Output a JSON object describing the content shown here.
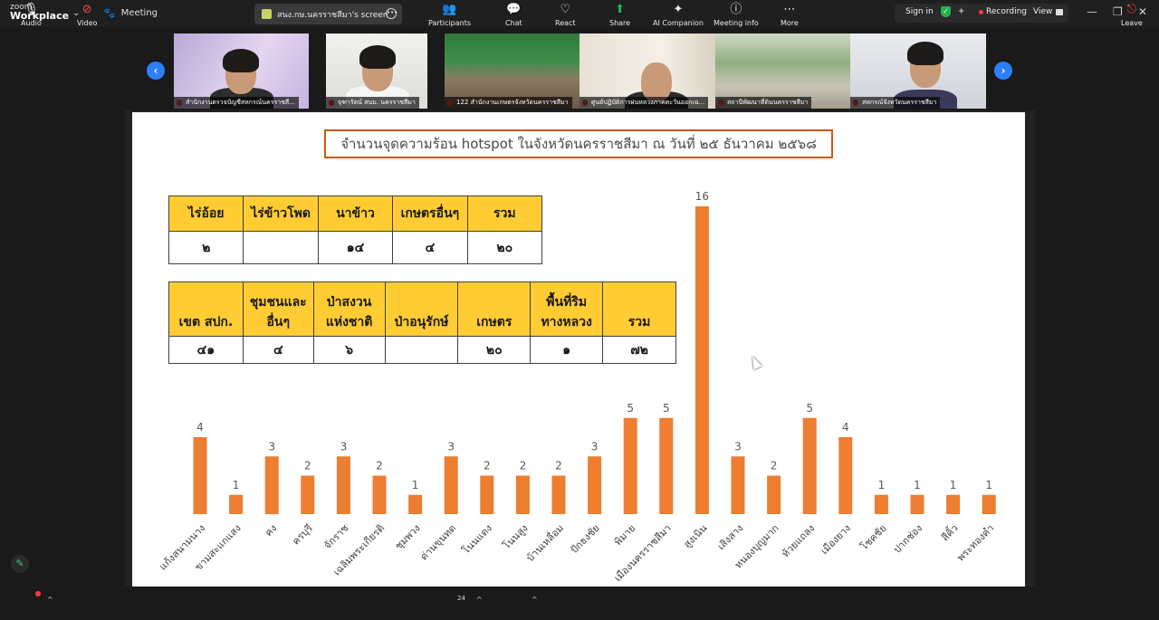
{
  "app": {
    "brand_top": "zoom",
    "brand_main": "Workplace",
    "meeting_label": "Meeting",
    "share_tab_label": "สนง.กษ.นครราชสีมา's screen",
    "sign_in": "Sign in",
    "recording": "Recording",
    "view": "View"
  },
  "participants_strip": [
    {
      "name": "สำนักงานตรวจบัญชีสหกรณ์นครราชสี..."
    },
    {
      "name": "จุฑารัตน์ สนม. นครราชสีมา"
    },
    {
      "name": "122 สำนักงานเกษตรจังหวัดนครราชสีมา"
    },
    {
      "name": "ศูนย์ปฏิบัติการฝนหลวงภาคตะวันออกเฉ..."
    },
    {
      "name": "สถานีพัฒนาที่ดินนครราชสีมา"
    },
    {
      "name": "สหกรณ์จังหวัดนครราชสีมา"
    }
  ],
  "slide": {
    "title": "จำนวนจุดความร้อน hotspot ในจังหวัดนครราชสีมา ณ วันที่ ๒๕ ธันวาคม ๒๕๖๘",
    "table1": {
      "headers": [
        "ไร่อ้อย",
        "ไร่ข้าวโพด",
        "นาข้าว",
        "เกษตรอื่นๆ",
        "รวม"
      ],
      "values": [
        "๒",
        "",
        "๑๔",
        "๔",
        "๒๐"
      ]
    },
    "table2": {
      "headers_line1": [
        "",
        "ชุมชนและ",
        "ป่าสงวน",
        "",
        "",
        "พื้นที่ริม",
        ""
      ],
      "headers_line2": [
        "เขต สปก.",
        "อื่นๆ",
        "แห่งชาติ",
        "ป่าอนุรักษ์",
        "เกษตร",
        "ทางหลวง",
        "รวม"
      ],
      "values": [
        "๔๑",
        "๔",
        "๖",
        "",
        "๒๐",
        "๑",
        "๗๒"
      ]
    }
  },
  "chart_data": {
    "type": "bar",
    "categories": [
      "แก้งสนามนาง",
      "ขามสะแกแสง",
      "คง",
      "ครบุรี",
      "จักราช",
      "เฉลิมพระเกียรติ",
      "ชุมพวง",
      "ด่านขุนทด",
      "โนนแดง",
      "โนนสูง",
      "บ้านเหลื่อม",
      "ปักธงชัย",
      "พิมาย",
      "เมืองนครราชสีมา",
      "สูงเนิน",
      "เสิงสาง",
      "หนองบุญมาก",
      "ห้วยแถลง",
      "เมืองยาง",
      "โชคชัย",
      "ปากช่อง",
      "สีคิ้ว",
      "พระทองคำ"
    ],
    "values": [
      4,
      1,
      3,
      2,
      3,
      2,
      1,
      3,
      2,
      2,
      2,
      3,
      5,
      5,
      16,
      3,
      2,
      5,
      4,
      1,
      1,
      1,
      1
    ],
    "ylim": [
      0,
      16
    ],
    "color": "#ed7d31",
    "grid": false
  },
  "toolbar": {
    "audio": "Audio",
    "video": "Video",
    "participants": "Participants",
    "participants_count": "24",
    "chat": "Chat",
    "react": "React",
    "share": "Share",
    "ai_companion": "AI Companion",
    "meeting_info": "Meeting info",
    "more": "More",
    "leave": "Leave"
  },
  "icons": {
    "audio": "mic-icon",
    "video": "video-off-icon",
    "participants": "people-icon",
    "chat": "chat-icon",
    "react": "heart-icon",
    "share": "share-icon",
    "ai": "sparkle-icon",
    "info": "info-icon",
    "more": "dots-icon",
    "leave": "leave-icon"
  }
}
